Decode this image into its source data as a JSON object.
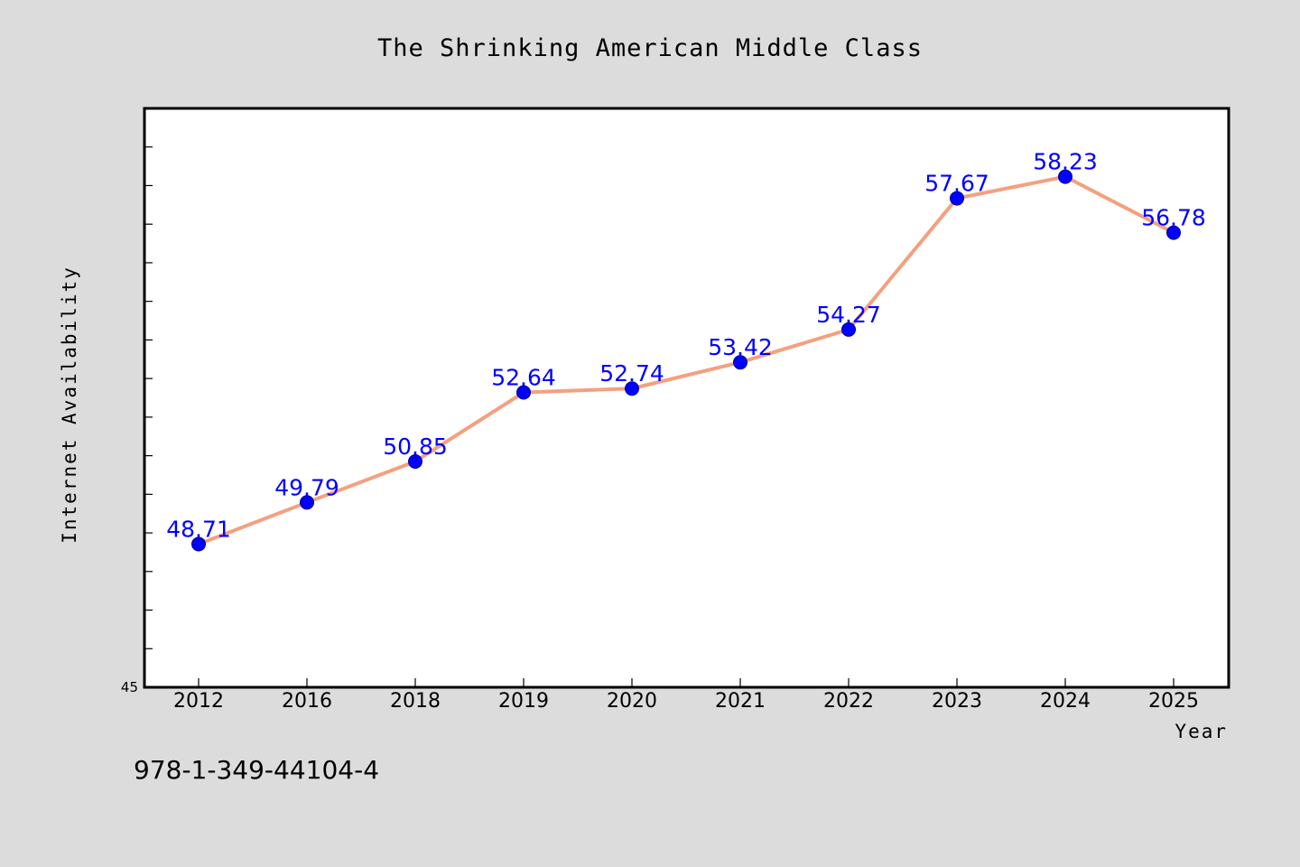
{
  "colors": {
    "background": "#dcdcdc",
    "plot_background": "#ffffff",
    "line": "#f4a07f",
    "marker": "#0000ff",
    "data_label": "#0000ff"
  },
  "isbn": "978-1-349-44104-4",
  "chart_data": {
    "type": "line",
    "title": "The Shrinking American Middle Class",
    "xlabel": "Year",
    "ylabel": "Internet Availability",
    "categories": [
      "2012",
      "2016",
      "2018",
      "2019",
      "2020",
      "2021",
      "2022",
      "2023",
      "2024",
      "2025"
    ],
    "values": [
      48.71,
      49.79,
      50.85,
      52.64,
      52.74,
      53.42,
      54.27,
      57.67,
      58.23,
      56.78
    ],
    "value_labels": [
      "48.71",
      "49.79",
      "50.85",
      "52.64",
      "52.74",
      "53.42",
      "54.27",
      "57.67",
      "58.23",
      "56.78"
    ],
    "y_tick_labels": [
      "45"
    ],
    "ylim": [
      45,
      60
    ],
    "grid": false,
    "legend": "none"
  }
}
